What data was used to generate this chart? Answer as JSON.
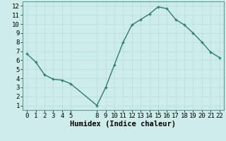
{
  "x": [
    0,
    1,
    2,
    3,
    4,
    5,
    8,
    9,
    10,
    11,
    12,
    13,
    14,
    15,
    16,
    17,
    18,
    19,
    20,
    21,
    22
  ],
  "y": [
    6.7,
    5.8,
    4.4,
    3.9,
    3.8,
    3.4,
    1.0,
    3.0,
    5.5,
    8.0,
    9.9,
    10.5,
    11.1,
    11.9,
    11.7,
    10.5,
    9.9,
    9.0,
    8.0,
    6.9,
    6.3
  ],
  "line_color": "#2d7d6e",
  "marker_color": "#2d7d6e",
  "bg_color": "#ceecea",
  "grid_color": "#b8ddd9",
  "xlabel": "Humidex (Indice chaleur)",
  "xlabel_fontsize": 7.5,
  "tick_fontsize": 6.5,
  "xlim": [
    -0.5,
    22.5
  ],
  "ylim": [
    0.5,
    12.5
  ],
  "yticks": [
    1,
    2,
    3,
    4,
    5,
    6,
    7,
    8,
    9,
    10,
    11,
    12
  ],
  "xticks": [
    0,
    1,
    2,
    3,
    4,
    5,
    8,
    9,
    10,
    11,
    12,
    13,
    14,
    15,
    16,
    17,
    18,
    19,
    20,
    21,
    22
  ],
  "linewidth": 1.0,
  "markersize": 2.8
}
